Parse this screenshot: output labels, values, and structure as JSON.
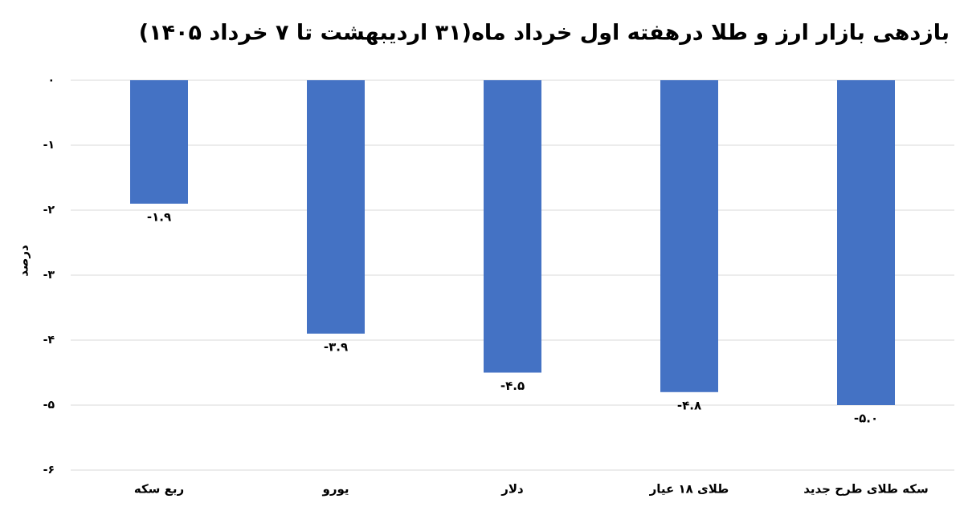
{
  "chart_data": {
    "type": "bar",
    "title": "بازدهی بازار ارز و طلا  درهفته اول خرداد ماه(۳۱ اردیبهشت تا ۷ خرداد ۱۴۰۵)",
    "y_label": "درصد",
    "categories": [
      "ربع سکه",
      "یورو",
      "دلار",
      "طلای ۱۸ عیار",
      "سکه طلای طرح جدید"
    ],
    "values": [
      -1.9,
      -3.9,
      -4.5,
      -4.8,
      -5.0
    ],
    "value_labels": [
      "-۱.۹",
      "-۳.۹",
      "-۴.۵",
      "-۴.۸",
      "-۵.۰"
    ],
    "color": "#4472c4",
    "ylim": [
      -6,
      0
    ],
    "yticks": [
      {
        "value": 0,
        "label": "۰"
      },
      {
        "value": -1,
        "label": "-۱"
      },
      {
        "value": -2,
        "label": "-۲"
      },
      {
        "value": -3,
        "label": "-۳"
      },
      {
        "value": -4,
        "label": "-۴"
      },
      {
        "value": -5,
        "label": "-۵"
      },
      {
        "value": -6,
        "label": "-۶"
      }
    ],
    "grid": true
  }
}
